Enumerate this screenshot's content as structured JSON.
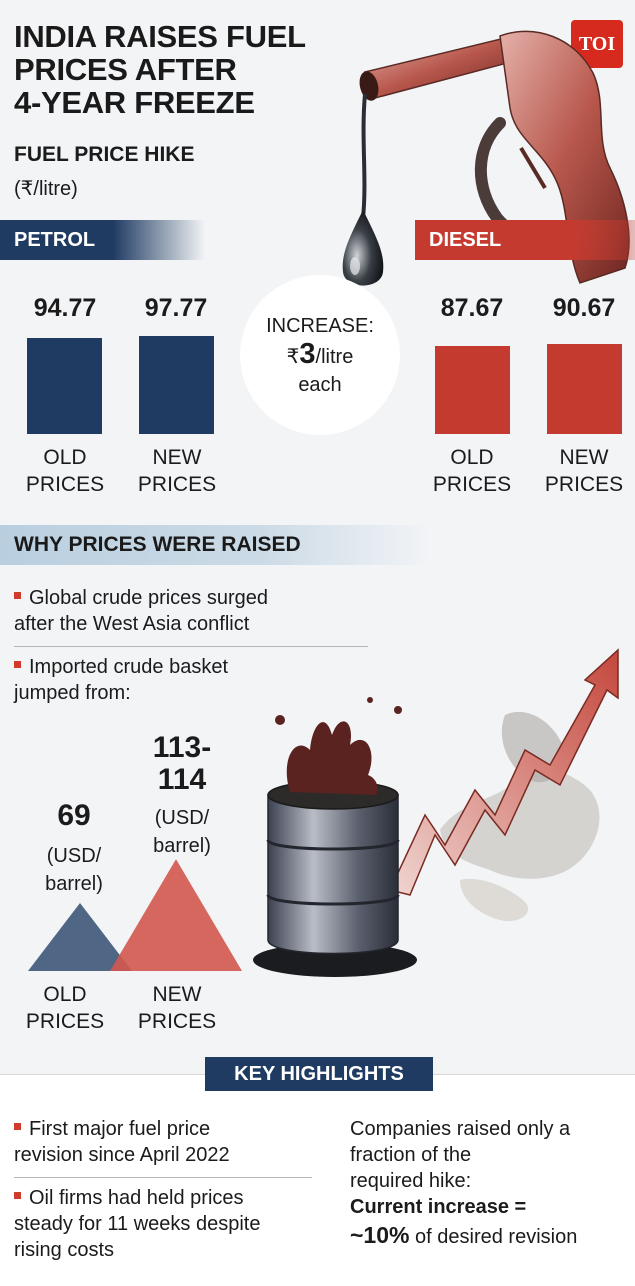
{
  "header": {
    "title_lines": [
      "INDIA RAISES FUEL",
      "PRICES AFTER",
      "4-YEAR FREEZE"
    ],
    "logo": "TOI",
    "subtitle": "FUEL PRICE HIKE",
    "unit": "(₹/litre)"
  },
  "petrol": {
    "label": "PETROL",
    "old_value": "94.77",
    "new_value": "97.77",
    "old_label": [
      "OLD",
      "PRICES"
    ],
    "new_label": [
      "NEW",
      "PRICES"
    ]
  },
  "diesel": {
    "label": "DIESEL",
    "old_value": "87.67",
    "new_value": "90.67",
    "old_label": [
      "OLD",
      "PRICES"
    ],
    "new_label": [
      "NEW",
      "PRICES"
    ]
  },
  "increase": {
    "line1": "INCREASE:",
    "currency": "₹",
    "amount": "3",
    "per": "/litre",
    "line3": "each"
  },
  "why": {
    "heading": "WHY PRICES WERE RAISED",
    "bullets": [
      [
        "Global crude prices surged",
        "after the West Asia conflict"
      ],
      [
        "Imported crude basket",
        "jumped from:"
      ]
    ]
  },
  "crude": {
    "old_value": "69",
    "old_unit": [
      "(USD/",
      "barrel)"
    ],
    "new_value": [
      "113-",
      "114"
    ],
    "new_unit": [
      "(USD/",
      "barrel)"
    ],
    "old_label": [
      "OLD",
      "PRICES"
    ],
    "new_label": [
      "NEW",
      "PRICES"
    ]
  },
  "highlights": {
    "heading": "KEY HIGHLIGHTS",
    "left_bullets": [
      [
        "First major fuel price",
        "revision since April 2022"
      ],
      [
        "Oil firms had held prices",
        "steady for 11 weeks despite",
        "rising costs"
      ]
    ],
    "right_lines": [
      "Companies raised only a",
      "fraction of the",
      "required hike:"
    ],
    "right_bold": "Current increase =",
    "right_pct": "~10%",
    "right_tail": "of desired revision"
  },
  "colors": {
    "petrol": "#1f3b62",
    "diesel": "#c53a2f",
    "crude_old": "#4f6785",
    "crude_new": "#d3584e",
    "bullet": "#d23a2c"
  },
  "chart_data": [
    {
      "type": "bar",
      "title": "PETROL",
      "categories": [
        "OLD PRICES",
        "NEW PRICES"
      ],
      "values": [
        94.77,
        97.77
      ]
    },
    {
      "type": "bar",
      "title": "DIESEL",
      "categories": [
        "OLD PRICES",
        "NEW PRICES"
      ],
      "values": [
        87.67,
        90.67
      ]
    },
    {
      "type": "area",
      "categories": [
        "OLD PRICES",
        "NEW PRICES"
      ],
      "values": [
        69,
        113.5
      ],
      "value_labels": [
        "69",
        "113-114"
      ]
    }
  ]
}
